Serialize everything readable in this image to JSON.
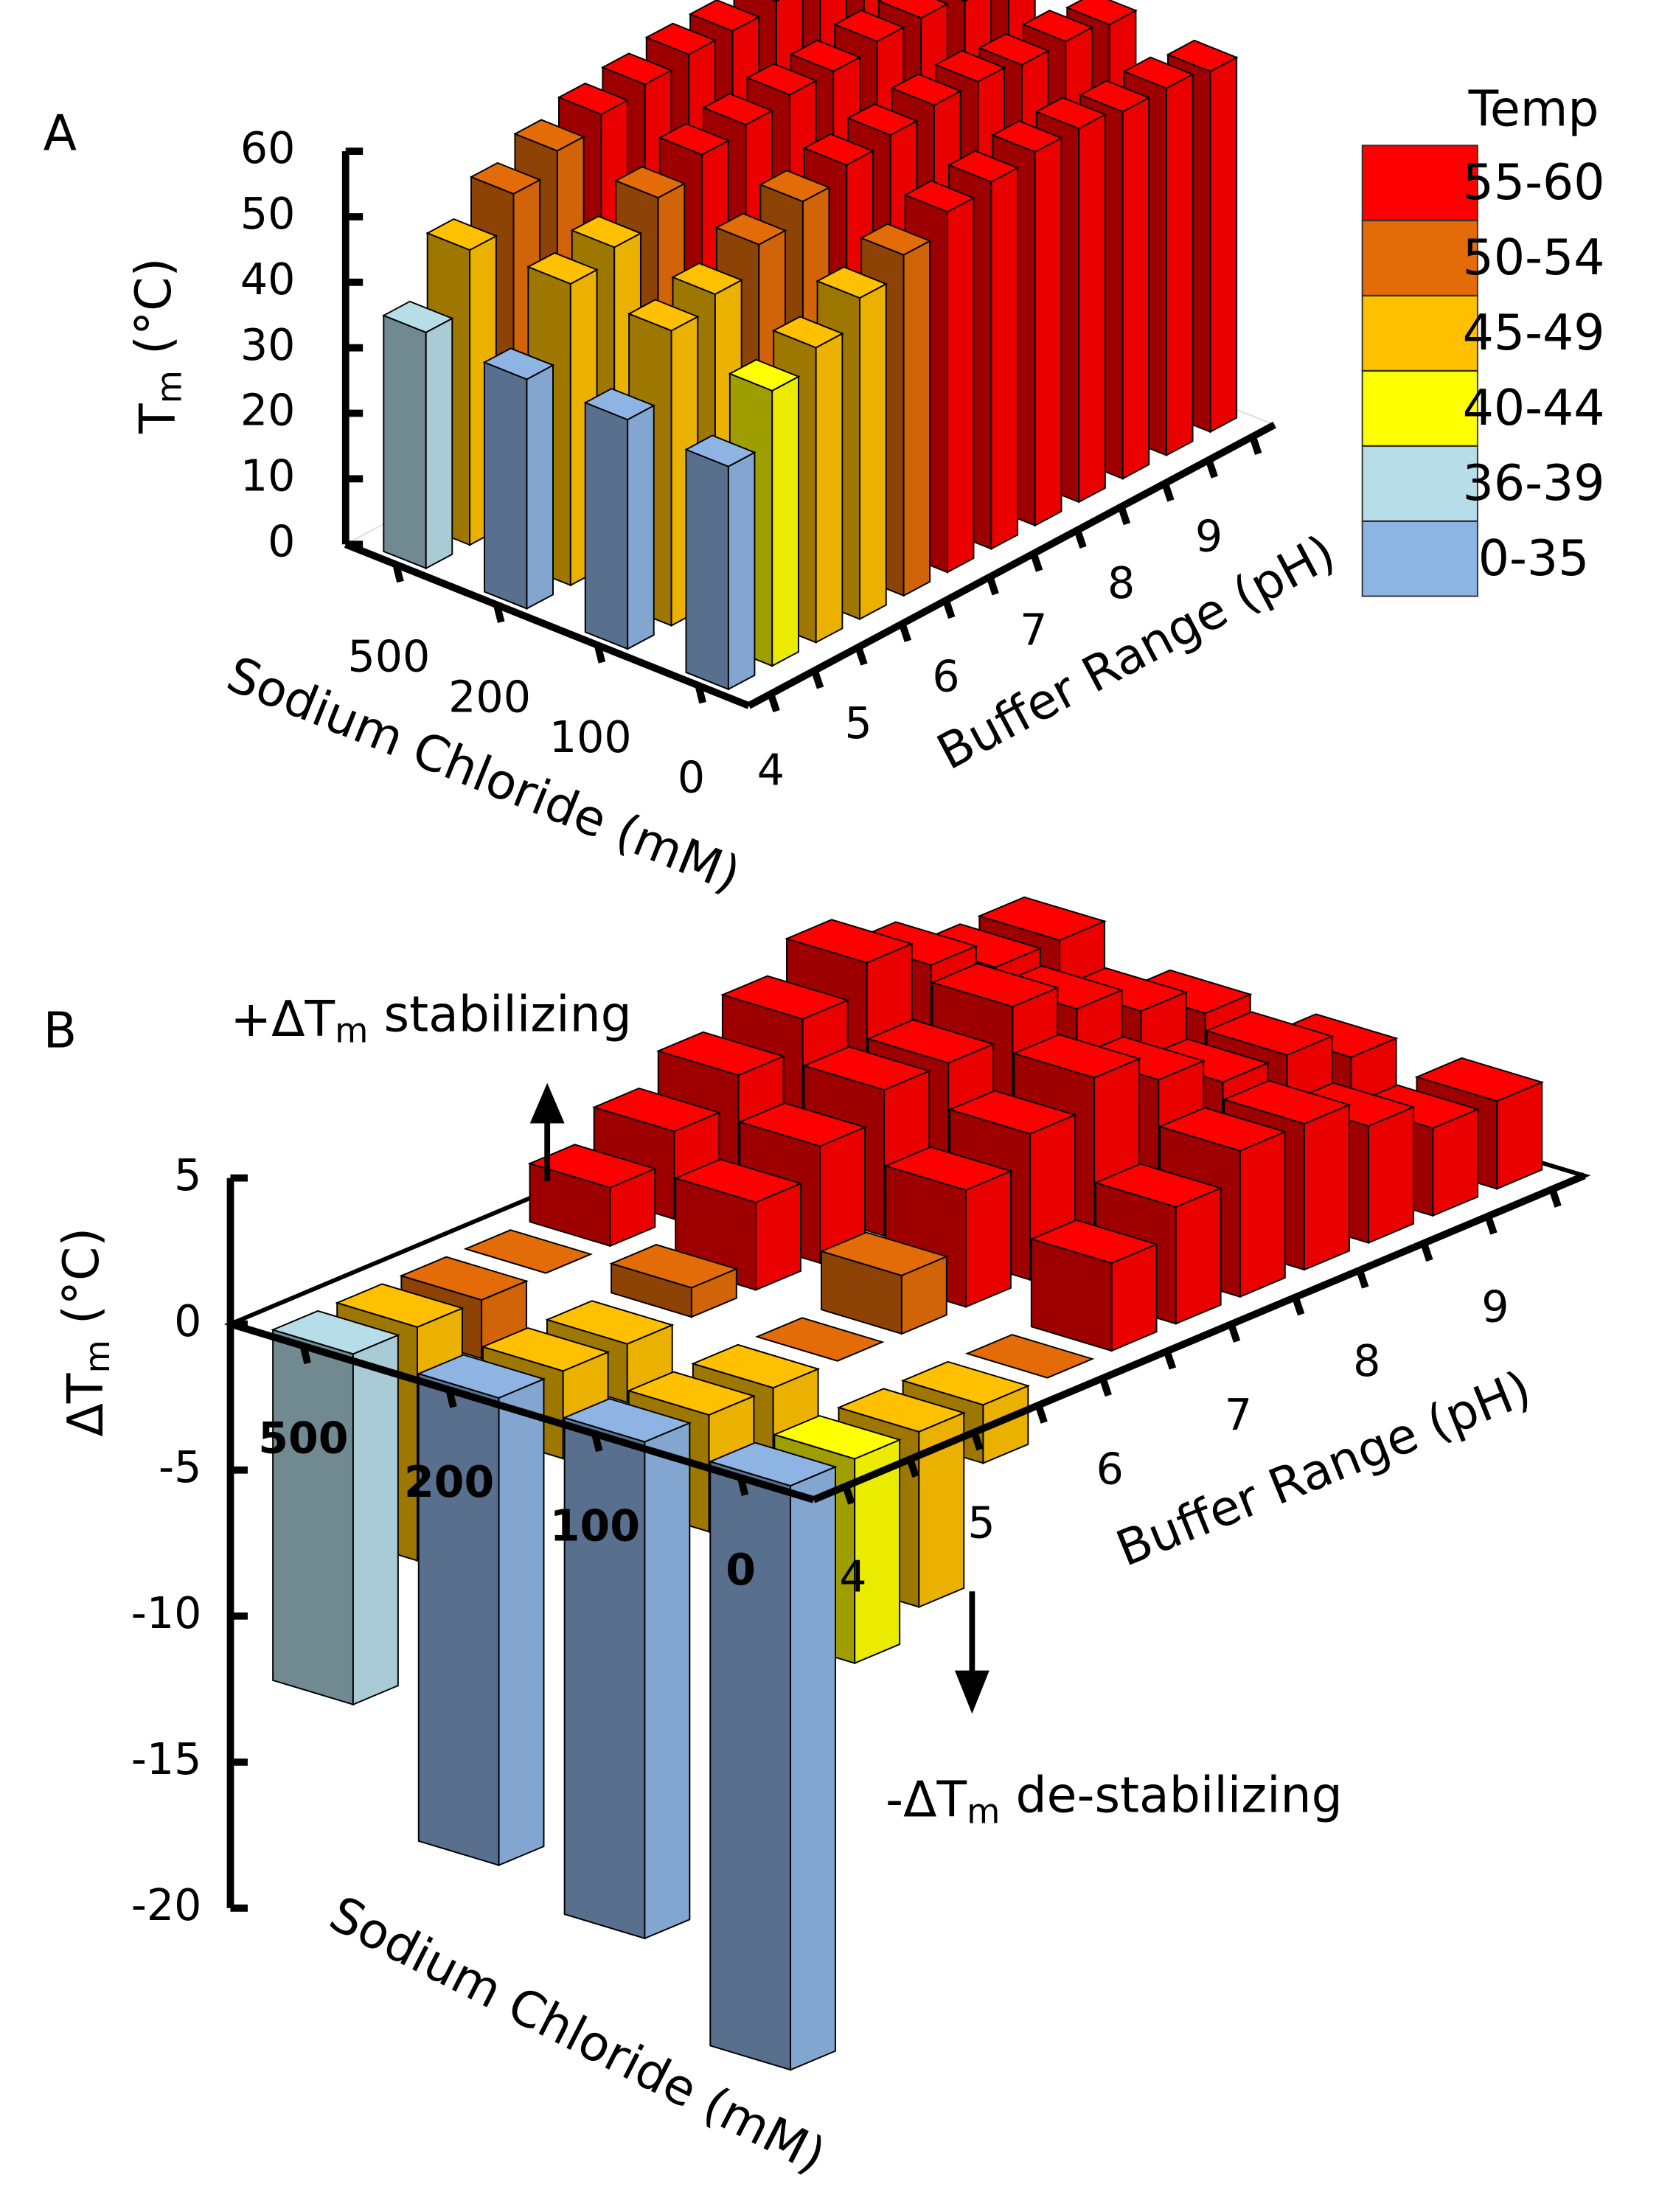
{
  "chart_data": [
    {
      "type": "bar3d",
      "title": "A",
      "y_label": "Tm (°C)",
      "x_label": "Buffer Range (pH)",
      "z_label": "Sodium Chloride (mM)",
      "categories": [
        "4",
        null,
        "5",
        null,
        "6",
        null,
        "7",
        null,
        "8",
        null,
        "9",
        null
      ],
      "series": [
        {
          "name": "500",
          "values": [
            36,
            45,
            50,
            53,
            55,
            56,
            57,
            57,
            58,
            58,
            57,
            57
          ]
        },
        {
          "name": "200",
          "values": [
            35,
            46,
            48,
            52,
            55,
            56,
            57,
            57,
            58,
            58,
            57,
            57
          ]
        },
        {
          "name": "100",
          "values": [
            35,
            45,
            47,
            51,
            54,
            56,
            57,
            58,
            58,
            57,
            57,
            56
          ]
        },
        {
          "name": "0",
          "values": [
            34,
            42,
            45,
            49,
            52,
            55,
            56,
            57,
            57,
            56,
            56,
            55
          ]
        }
      ],
      "ylim": [
        0,
        60
      ],
      "yticks": [
        0,
        10,
        20,
        30,
        40,
        50,
        60
      ],
      "legend": {
        "title": "Temp",
        "labels": [
          "55-60",
          "50-54",
          "45-49",
          "40-44",
          "36-39",
          "0-35"
        ],
        "colors": [
          "#ff0000",
          "#e36c09",
          "#ffc000",
          "#ffff00",
          "#b7dde8",
          "#8eb4e3"
        ]
      }
    },
    {
      "type": "bar3d",
      "title": "B",
      "y_label": "ΔTm (°C)",
      "x_label": "Buffer Range (pH)",
      "z_label": "Sodium Chloride (mM)",
      "categories": [
        "4",
        null,
        "5",
        null,
        "6",
        null,
        "7",
        null,
        "8",
        null,
        "9",
        null
      ],
      "series": [
        {
          "name": "500",
          "values": [
            -12,
            -8,
            -2,
            0,
            2,
            3,
            4,
            5,
            6,
            5,
            4,
            4
          ]
        },
        {
          "name": "200",
          "values": [
            -16,
            -3,
            -2,
            1,
            3,
            4,
            5,
            5,
            6,
            5,
            4,
            3
          ]
        },
        {
          "name": "100",
          "values": [
            -17,
            -4,
            -3,
            0,
            2,
            4,
            5,
            6,
            5,
            4,
            4,
            3
          ]
        },
        {
          "name": "0",
          "values": [
            -20,
            -7,
            -6,
            -2,
            0,
            3,
            4,
            5,
            5,
            4,
            3,
            3
          ]
        }
      ],
      "ylim": [
        -20,
        5
      ],
      "yticks": [
        -20,
        -15,
        -10,
        -5,
        0,
        5
      ],
      "annotations": [
        "+ΔTm stabilizing",
        "-ΔTm de-stabilizing"
      ]
    }
  ]
}
